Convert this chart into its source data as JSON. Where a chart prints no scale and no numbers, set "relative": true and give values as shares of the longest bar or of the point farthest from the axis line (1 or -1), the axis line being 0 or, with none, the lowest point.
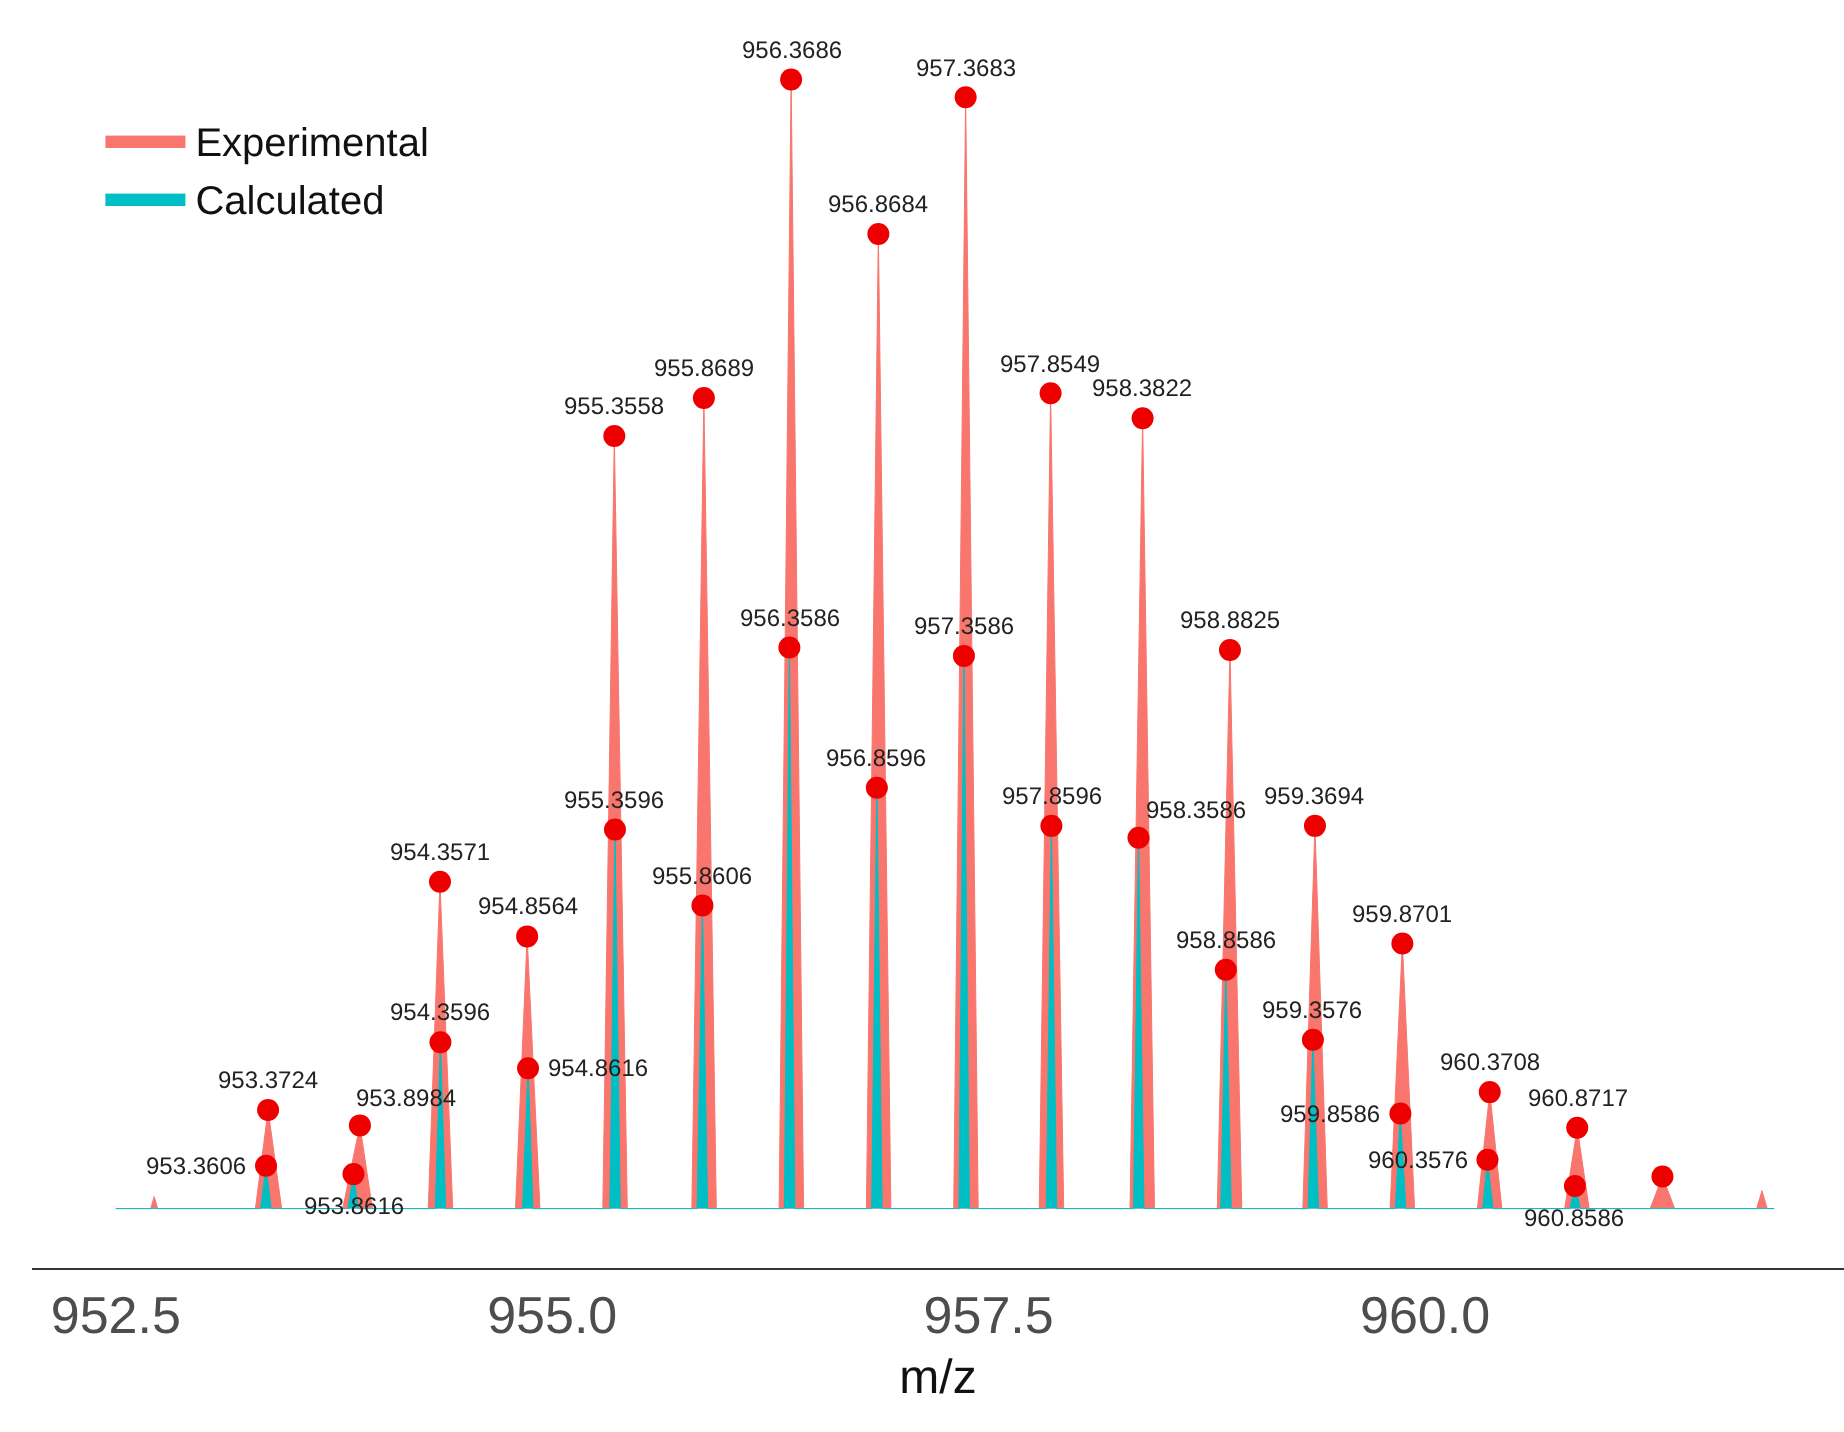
{
  "chart_data": {
    "type": "area",
    "xlabel": "m/z",
    "relative": true,
    "xlim": [
      952.02,
      962.4
    ],
    "xticks": [
      952.5,
      {
        "value": 955,
        "label": "955.0"
      },
      957.5,
      {
        "value": 960,
        "label": "960.0"
      }
    ],
    "grid": false,
    "legend": "top left",
    "tick_labels": "x",
    "series": [
      {
        "name": "Experimental",
        "color": "#f8766d",
        "x": [
          952.5,
          952.7,
          952.72,
          952.74,
          953.3,
          953.3724,
          953.45,
          953.8,
          953.8984,
          953.97,
          954.29,
          954.3571,
          954.43,
          954.79,
          954.8564,
          954.93,
          955.29,
          955.3558,
          955.43,
          955.8,
          955.8689,
          955.94,
          956.3,
          956.3686,
          956.44,
          956.8,
          956.8684,
          956.94,
          957.3,
          957.3683,
          957.44,
          957.79,
          957.8549,
          957.93,
          958.31,
          958.3822,
          958.45,
          958.81,
          958.8825,
          958.95,
          959.3,
          959.3694,
          959.44,
          959.8,
          959.8701,
          959.94,
          960.3,
          960.3708,
          960.44,
          960.8,
          960.8717,
          960.94,
          961.29,
          961.36,
          961.43,
          961.9,
          961.93,
          961.96,
          962.0
        ],
        "values": [
          0.05,
          0.05,
          0.06,
          0.05,
          0.05,
          0.133,
          0.05,
          0.05,
          0.12,
          0.05,
          0.05,
          0.325,
          0.05,
          0.05,
          0.279,
          0.05,
          0.05,
          0.7,
          0.05,
          0.05,
          0.732,
          0.05,
          0.05,
          1,
          0.05,
          0.05,
          0.87,
          0.05,
          0.05,
          0.985,
          0.05,
          0.05,
          0.736,
          0.05,
          0.05,
          0.715,
          0.05,
          0.05,
          0.52,
          0.05,
          0.05,
          0.372,
          0.05,
          0.05,
          0.273,
          0.05,
          0.05,
          0.148,
          0.05,
          0.05,
          0.118,
          0.05,
          0.05,
          0.077,
          0.05,
          0.05,
          0.065,
          0.05,
          0.05
        ]
      },
      {
        "name": "Calculated",
        "color": "#00bfc4",
        "x": [
          952.5,
          953.33,
          953.3606,
          953.39,
          953.83,
          953.8616,
          953.89,
          954.33,
          954.3596,
          954.39,
          954.83,
          954.8616,
          954.89,
          955.33,
          955.3596,
          955.39,
          955.83,
          955.8606,
          955.89,
          956.33,
          956.3586,
          956.39,
          956.83,
          956.8596,
          956.89,
          957.33,
          957.3586,
          957.39,
          957.83,
          957.8596,
          957.89,
          958.33,
          958.3586,
          958.39,
          958.83,
          958.8586,
          958.89,
          959.33,
          959.3576,
          959.39,
          959.83,
          959.8586,
          959.89,
          960.33,
          960.3576,
          960.39,
          960.83,
          960.8586,
          960.89,
          962.0
        ],
        "values": [
          0.05,
          0.05,
          0.086,
          0.05,
          0.05,
          0.079,
          0.05,
          0.05,
          0.19,
          0.05,
          0.05,
          0.168,
          0.05,
          0.05,
          0.369,
          0.05,
          0.05,
          0.305,
          0.05,
          0.05,
          0.522,
          0.05,
          0.05,
          0.404,
          0.05,
          0.05,
          0.515,
          0.05,
          0.05,
          0.372,
          0.05,
          0.05,
          0.362,
          0.05,
          0.05,
          0.251,
          0.05,
          0.05,
          0.192,
          0.05,
          0.05,
          0.13,
          0.05,
          0.05,
          0.091,
          0.05,
          0.05,
          0.069,
          0.05,
          0.05
        ]
      },
      {
        "type": "scatter",
        "color": "#ee0000",
        "marker": "circle",
        "x": [
          953.3724,
          953.8984,
          954.3571,
          954.8564,
          955.3558,
          955.8689,
          956.3686,
          956.8684,
          957.3683,
          957.8549,
          958.3822,
          958.8825,
          959.3694,
          959.8701,
          960.3708,
          960.8717,
          961.36
        ],
        "values": [
          0.133,
          0.12,
          0.325,
          0.279,
          0.7,
          0.732,
          1,
          0.87,
          0.985,
          0.736,
          0.715,
          0.52,
          0.372,
          0.273,
          0.148,
          0.118,
          0.077
        ]
      },
      {
        "type": "scatter",
        "color": "#ee0000",
        "marker": "circle",
        "x": [
          953.3606,
          953.8616,
          954.3596,
          954.8616,
          955.3596,
          955.8606,
          956.3586,
          956.8596,
          957.3586,
          957.8596,
          958.3586,
          958.8586,
          959.3576,
          959.8586,
          960.3576,
          960.8586
        ],
        "values": [
          0.086,
          0.079,
          0.19,
          0.168,
          0.369,
          0.305,
          0.522,
          0.404,
          0.515,
          0.372,
          0.362,
          0.251,
          0.192,
          0.13,
          0.091,
          0.069
        ]
      }
    ],
    "annotations": [
      {
        "text": "953.3724",
        "x": 953.3724,
        "y": 0.133
      },
      {
        "text": "953.8984",
        "x": 953.8984,
        "y": 0.12
      },
      {
        "text": "954.3571",
        "x": 954.3571,
        "y": 0.325
      },
      {
        "text": "954.8564",
        "x": 954.8564,
        "y": 0.279
      },
      {
        "text": "955.3558",
        "x": 955.3558,
        "y": 0.7
      },
      {
        "text": "955.8689",
        "x": 955.8689,
        "y": 0.732
      },
      {
        "text": "956.3686",
        "x": 956.3686,
        "y": 1
      },
      {
        "text": "956.8684",
        "x": 956.8684,
        "y": 0.87
      },
      {
        "text": "957.3683",
        "x": 957.3683,
        "y": 0.985
      },
      {
        "text": "957.8549",
        "x": 957.8549,
        "y": 0.736
      },
      {
        "text": "958.3822",
        "x": 958.3822,
        "y": 0.715
      },
      {
        "text": "958.8825",
        "x": 958.8825,
        "y": 0.52
      },
      {
        "text": "959.3694",
        "x": 959.3694,
        "y": 0.372
      },
      {
        "text": "959.8701",
        "x": 959.8701,
        "y": 0.273
      },
      {
        "text": "960.3708",
        "x": 960.3708,
        "y": 0.148
      },
      {
        "text": "960.8717",
        "x": 960.8717,
        "y": 0.118
      },
      {
        "text": "953.3606",
        "x": 953.3606,
        "y": 0.086
      },
      {
        "text": "953.8616",
        "x": 953.8616,
        "y": 0.079
      },
      {
        "text": "954.3596",
        "x": 954.3596,
        "y": 0.19
      },
      {
        "text": "954.8616",
        "x": 954.8616,
        "y": 0.168
      },
      {
        "text": "955.3596",
        "x": 955.3596,
        "y": 0.369
      },
      {
        "text": "955.8606",
        "x": 955.8606,
        "y": 0.305
      },
      {
        "text": "956.3586",
        "x": 956.3586,
        "y": 0.522
      },
      {
        "text": "956.8596",
        "x": 956.8596,
        "y": 0.404
      },
      {
        "text": "957.3586",
        "x": 957.3586,
        "y": 0.515
      },
      {
        "text": "957.8596",
        "x": 957.8596,
        "y": 0.372
      },
      {
        "text": "958.3586",
        "x": 958.3586,
        "y": 0.362
      },
      {
        "text": "958.8586",
        "x": 958.8586,
        "y": 0.251
      },
      {
        "text": "959.3576",
        "x": 959.3576,
        "y": 0.192
      },
      {
        "text": "959.8586",
        "x": 959.8586,
        "y": 0.13
      },
      {
        "text": "960.3576",
        "x": 960.3576,
        "y": 0.091
      },
      {
        "text": "960.8586",
        "x": 960.8586,
        "y": 0.069
      }
    ]
  }
}
